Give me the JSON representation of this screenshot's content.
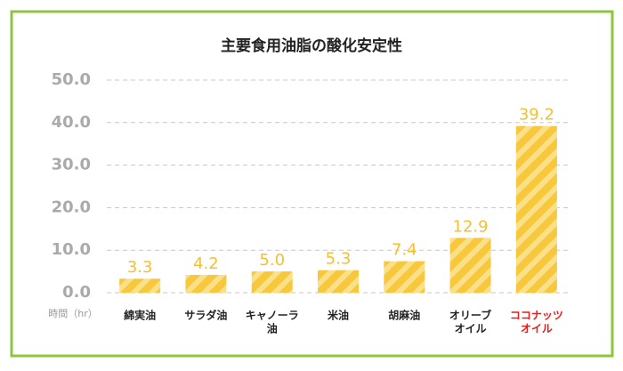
{
  "chart_data": {
    "type": "bar",
    "title": "主要食用油脂の酸化安定性",
    "ylabel": "時間（hr）",
    "categories": [
      [
        "綿実油"
      ],
      [
        "サラダ油"
      ],
      [
        "キャノーラ",
        "油"
      ],
      [
        "米油"
      ],
      [
        "胡麻油"
      ],
      [
        "オリーブ",
        "オイル"
      ],
      [
        "ココナッツ",
        "オイル"
      ]
    ],
    "values": [
      3.3,
      4.2,
      5.0,
      5.3,
      7.4,
      12.9,
      39.2
    ],
    "value_labels": [
      "3.3",
      "4.2",
      "5.0",
      "5.3",
      "7.4",
      "12.9",
      "39.2"
    ],
    "color": "#f7c83c",
    "stripe_color": "#fbe08a",
    "value_label_color": "#f2c12e",
    "x_label_colors": [
      "#222222",
      "#222222",
      "#222222",
      "#222222",
      "#222222",
      "#222222",
      "#e02020"
    ],
    "ylim": [
      0,
      50
    ],
    "yticks": [
      {
        "value": 0,
        "label": "0.0"
      },
      {
        "value": 10,
        "label": "10.0"
      },
      {
        "value": 20,
        "label": "20.0"
      },
      {
        "value": 30,
        "label": "30.0"
      },
      {
        "value": 40,
        "label": "40.0"
      },
      {
        "value": 50,
        "label": "50.0"
      }
    ],
    "grid": true
  }
}
